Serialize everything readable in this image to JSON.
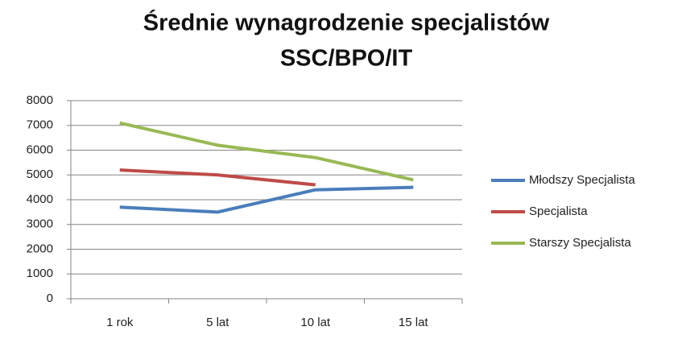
{
  "chart_data": {
    "type": "line",
    "title": [
      "Średnie wynagrodzenie specjalistów",
      "SSC/BPO/IT"
    ],
    "categories": [
      "1 rok",
      "5 lat",
      "10 lat",
      "15 lat"
    ],
    "series": [
      {
        "name": "Młodszy Specjalista",
        "color": "#4a7ebb",
        "values": [
          3700,
          3500,
          4400,
          4500
        ]
      },
      {
        "name": "Specjalista",
        "color": "#be4b48",
        "values": [
          5200,
          5000,
          4600,
          null
        ]
      },
      {
        "name": "Starszy Specjalista",
        "color": "#98b954",
        "values": [
          7100,
          6200,
          5700,
          4800
        ]
      }
    ],
    "ylim": [
      0,
      8000
    ],
    "yticks": [
      0,
      1000,
      2000,
      3000,
      4000,
      5000,
      6000,
      7000,
      8000
    ],
    "grid": true,
    "legend": "right"
  }
}
